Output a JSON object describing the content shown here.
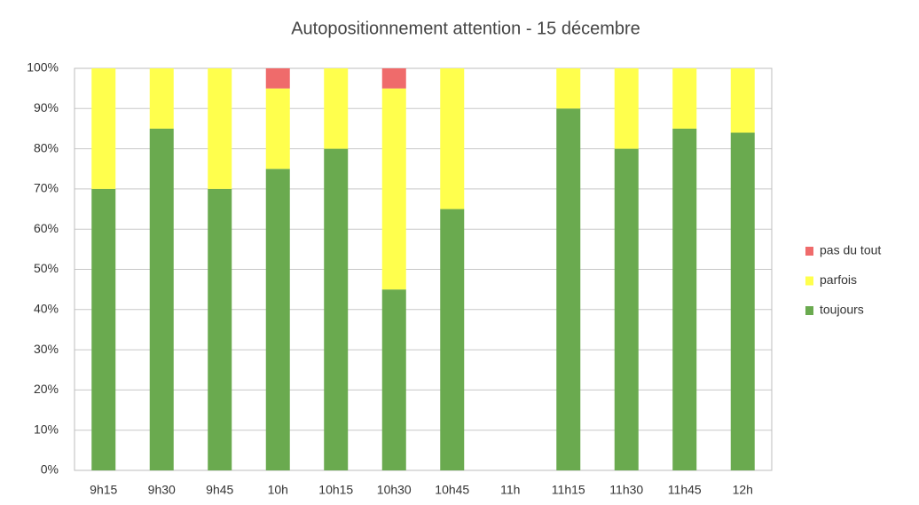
{
  "chart_data": {
    "type": "stacked_bar",
    "title": "Autopositionnement attention - 15 décembre",
    "categories": [
      "9h15",
      "9h30",
      "9h45",
      "10h",
      "10h15",
      "10h30",
      "10h45",
      "11h",
      "11h15",
      "11h30",
      "11h45",
      "12h"
    ],
    "series": [
      {
        "name": "toujours",
        "color": "#6aaa4f",
        "values": [
          70,
          85,
          70,
          75,
          80,
          45,
          65,
          null,
          90,
          80,
          85,
          84
        ]
      },
      {
        "name": "parfois",
        "color": "#ffff4d",
        "values": [
          30,
          15,
          30,
          20,
          20,
          50,
          35,
          null,
          10,
          20,
          15,
          16
        ]
      },
      {
        "name": "pas du tout",
        "color": "#ef6b6b",
        "values": [
          0,
          0,
          0,
          5,
          0,
          5,
          0,
          null,
          0,
          0,
          0,
          0
        ]
      }
    ],
    "ylim": [
      0,
      100
    ],
    "yticks": [
      {
        "value": 0,
        "label": "0%"
      },
      {
        "value": 10,
        "label": "10%"
      },
      {
        "value": 20,
        "label": "20%"
      },
      {
        "value": 30,
        "label": "30%"
      },
      {
        "value": 40,
        "label": "40%"
      },
      {
        "value": 50,
        "label": "50%"
      },
      {
        "value": 60,
        "label": "60%"
      },
      {
        "value": 70,
        "label": "70%"
      },
      {
        "value": 80,
        "label": "80%"
      },
      {
        "value": 90,
        "label": "90%"
      },
      {
        "value": 100,
        "label": "100%"
      }
    ],
    "grid": true,
    "legend": "right"
  }
}
